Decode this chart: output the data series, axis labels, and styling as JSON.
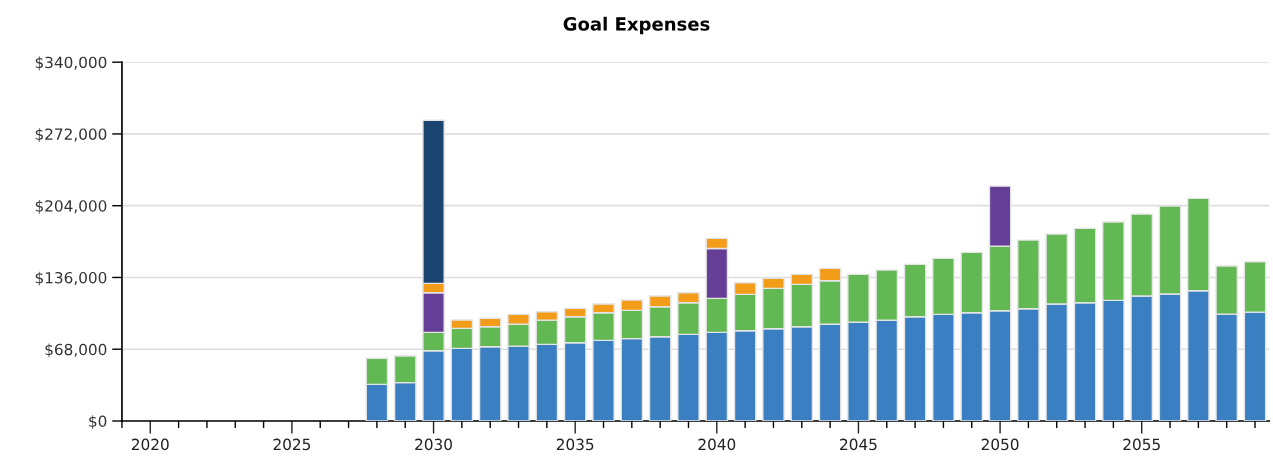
{
  "chart_data": {
    "type": "bar",
    "title": "Goal Expenses",
    "stacked": true,
    "grid": "y",
    "x": [
      2028,
      2029,
      2030,
      2031,
      2032,
      2033,
      2034,
      2035,
      2036,
      2037,
      2038,
      2039,
      2040,
      2041,
      2042,
      2043,
      2044,
      2045,
      2046,
      2047,
      2048,
      2049,
      2050,
      2051,
      2052,
      2053,
      2054,
      2055,
      2056,
      2057,
      2058,
      2059
    ],
    "series": [
      {
        "color": "#3a7fc1",
        "values": [
          34700,
          36300,
          66600,
          68800,
          70400,
          70900,
          72600,
          74200,
          76400,
          78000,
          79800,
          82100,
          84000,
          85500,
          87400,
          89300,
          91600,
          93500,
          95400,
          98800,
          101000,
          102600,
          104500,
          106400,
          110800,
          112000,
          114300,
          118400,
          120300,
          123400,
          101300,
          103200
        ]
      },
      {
        "color": "#62b853",
        "values": [
          24700,
          25300,
          17400,
          19000,
          18900,
          20700,
          23000,
          24600,
          26200,
          26800,
          28500,
          29900,
          32200,
          34500,
          38300,
          40200,
          41300,
          45400,
          47600,
          49600,
          53100,
          57200,
          61200,
          65000,
          66300,
          70500,
          74200,
          77600,
          83300,
          87500,
          45500,
          47600
        ]
      },
      {
        "color": "#653f97",
        "values": [
          null,
          null,
          37500,
          null,
          null,
          null,
          null,
          null,
          null,
          null,
          null,
          null,
          47300,
          null,
          null,
          null,
          null,
          null,
          null,
          null,
          null,
          null,
          56800,
          null,
          null,
          null,
          null,
          null,
          null,
          null,
          null,
          null
        ]
      },
      {
        "color": "#f39c1a",
        "values": [
          null,
          null,
          8900,
          7900,
          8000,
          9400,
          7900,
          7900,
          8200,
          9800,
          10100,
          9500,
          9500,
          11000,
          9400,
          9400,
          11700,
          null,
          null,
          null,
          null,
          null,
          null,
          null,
          null,
          null,
          null,
          null,
          null,
          null,
          null,
          null
        ]
      },
      {
        "color": "#1c4470",
        "values": [
          null,
          null,
          154600,
          null,
          null,
          null,
          null,
          null,
          null,
          null,
          null,
          null,
          null,
          null,
          null,
          null,
          null,
          null,
          null,
          null,
          null,
          null,
          null,
          null,
          null,
          null,
          null,
          null,
          null,
          null,
          null,
          null
        ]
      }
    ],
    "xlim": [
      2019,
      2059.5
    ],
    "xticks": [
      {
        "value": 2019,
        "label": null
      },
      2020,
      {
        "value": 2021,
        "label": null
      },
      {
        "value": 2022,
        "label": null
      },
      {
        "value": 2023,
        "label": null
      },
      {
        "value": 2024,
        "label": null
      },
      2025,
      {
        "value": 2026,
        "label": null
      },
      {
        "value": 2027,
        "label": null
      },
      {
        "value": 2028,
        "label": null
      },
      {
        "value": 2029,
        "label": null
      },
      2030,
      {
        "value": 2031,
        "label": null
      },
      {
        "value": 2032,
        "label": null
      },
      {
        "value": 2033,
        "label": null
      },
      {
        "value": 2034,
        "label": null
      },
      2035,
      {
        "value": 2036,
        "label": null
      },
      {
        "value": 2037,
        "label": null
      },
      {
        "value": 2038,
        "label": null
      },
      {
        "value": 2039,
        "label": null
      },
      2040,
      {
        "value": 2041,
        "label": null
      },
      {
        "value": 2042,
        "label": null
      },
      {
        "value": 2043,
        "label": null
      },
      {
        "value": 2044,
        "label": null
      },
      2045,
      {
        "value": 2046,
        "label": null
      },
      {
        "value": 2047,
        "label": null
      },
      {
        "value": 2048,
        "label": null
      },
      {
        "value": 2049,
        "label": null
      },
      2050,
      {
        "value": 2051,
        "label": null
      },
      {
        "value": 2052,
        "label": null
      },
      {
        "value": 2053,
        "label": null
      },
      {
        "value": 2054,
        "label": null
      },
      2055,
      {
        "value": 2056,
        "label": null
      },
      {
        "value": 2057,
        "label": null
      },
      {
        "value": 2058,
        "label": null
      },
      {
        "value": 2059,
        "label": null
      }
    ],
    "ylim": [
      0,
      340000
    ],
    "yticks": [
      {
        "value": 0,
        "label": "$0"
      },
      {
        "value": 68000,
        "label": "$68,000"
      },
      {
        "value": 136000,
        "label": "$136,000"
      },
      {
        "value": 204000,
        "label": "$204,000"
      },
      {
        "value": 272000,
        "label": "$272,000"
      },
      {
        "value": 340000,
        "label": "$340,000"
      }
    ]
  }
}
